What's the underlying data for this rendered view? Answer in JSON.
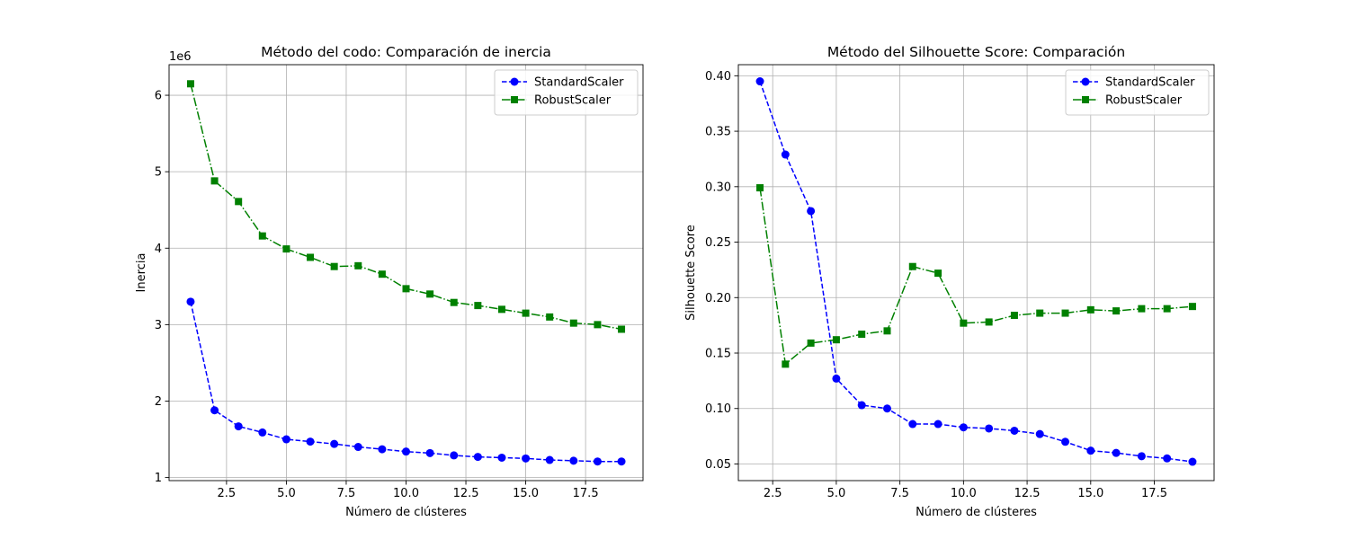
{
  "chart_data": [
    {
      "type": "line",
      "title": "Método del codo: Comparación de inercia",
      "xlabel": "Número de clústeres",
      "ylabel": "Inercia",
      "y_offset_label": "1e6",
      "xlim": [
        0.1,
        19.9
      ],
      "ylim": [
        0.96,
        6.4
      ],
      "xticks": [
        2.5,
        5.0,
        7.5,
        10.0,
        12.5,
        15.0,
        17.5
      ],
      "xtick_labels": [
        "2.5",
        "5.0",
        "7.5",
        "10.0",
        "12.5",
        "15.0",
        "17.5"
      ],
      "yticks": [
        1,
        2,
        3,
        4,
        5,
        6
      ],
      "ytick_labels": [
        "1",
        "2",
        "3",
        "4",
        "5",
        "6"
      ],
      "grid": true,
      "legend_position": "top-right",
      "series": [
        {
          "name": "StandardScaler",
          "color": "#0000ff",
          "marker": "circle",
          "linestyle": "dashed",
          "x": [
            1,
            2,
            3,
            4,
            5,
            6,
            7,
            8,
            9,
            10,
            11,
            12,
            13,
            14,
            15,
            16,
            17,
            18,
            19
          ],
          "values": [
            3.3,
            1.88,
            1.67,
            1.59,
            1.5,
            1.47,
            1.44,
            1.4,
            1.37,
            1.34,
            1.32,
            1.29,
            1.27,
            1.26,
            1.25,
            1.23,
            1.22,
            1.21,
            1.21
          ]
        },
        {
          "name": "RobustScaler",
          "color": "#008000",
          "marker": "square",
          "linestyle": "dashdot",
          "x": [
            1,
            2,
            3,
            4,
            5,
            6,
            7,
            8,
            9,
            10,
            11,
            12,
            13,
            14,
            15,
            16,
            17,
            18,
            19
          ],
          "values": [
            6.15,
            4.88,
            4.61,
            4.16,
            3.99,
            3.88,
            3.76,
            3.77,
            3.66,
            3.47,
            3.4,
            3.29,
            3.25,
            3.2,
            3.15,
            3.1,
            3.02,
            3.0,
            2.94
          ]
        }
      ]
    },
    {
      "type": "line",
      "title": "Método del Silhouette Score: Comparación",
      "xlabel": "Número de clústeres",
      "ylabel": "Silhouette Score",
      "xlim": [
        1.15,
        19.85
      ],
      "ylim": [
        0.035,
        0.41
      ],
      "xticks": [
        2.5,
        5.0,
        7.5,
        10.0,
        12.5,
        15.0,
        17.5
      ],
      "xtick_labels": [
        "2.5",
        "5.0",
        "7.5",
        "10.0",
        "12.5",
        "15.0",
        "17.5"
      ],
      "yticks": [
        0.05,
        0.1,
        0.15,
        0.2,
        0.25,
        0.3,
        0.35,
        0.4
      ],
      "ytick_labels": [
        "0.05",
        "0.10",
        "0.15",
        "0.20",
        "0.25",
        "0.30",
        "0.35",
        "0.40"
      ],
      "grid": true,
      "legend_position": "top-right",
      "series": [
        {
          "name": "StandardScaler",
          "color": "#0000ff",
          "marker": "circle",
          "linestyle": "dashed",
          "x": [
            2,
            3,
            4,
            5,
            6,
            7,
            8,
            9,
            10,
            11,
            12,
            13,
            14,
            15,
            16,
            17,
            18,
            19
          ],
          "values": [
            0.395,
            0.329,
            0.278,
            0.127,
            0.103,
            0.1,
            0.086,
            0.086,
            0.083,
            0.082,
            0.08,
            0.077,
            0.07,
            0.062,
            0.06,
            0.057,
            0.055,
            0.052
          ]
        },
        {
          "name": "RobustScaler",
          "color": "#008000",
          "marker": "square",
          "linestyle": "dashdot",
          "x": [
            2,
            3,
            4,
            5,
            6,
            7,
            8,
            9,
            10,
            11,
            12,
            13,
            14,
            15,
            16,
            17,
            18,
            19
          ],
          "values": [
            0.299,
            0.14,
            0.159,
            0.162,
            0.167,
            0.17,
            0.228,
            0.222,
            0.177,
            0.178,
            0.184,
            0.186,
            0.186,
            0.189,
            0.188,
            0.19,
            0.19,
            0.192
          ]
        }
      ]
    }
  ]
}
